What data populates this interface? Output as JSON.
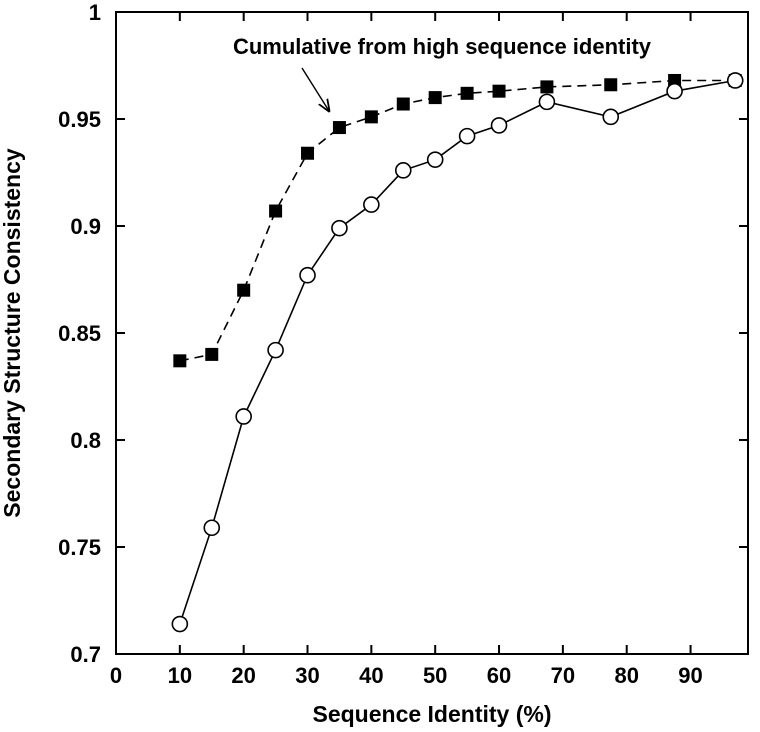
{
  "chart_data": {
    "type": "line",
    "title": "",
    "xlabel": "Sequence Identity (%)",
    "ylabel": "Secondary Structure Consistency",
    "xlim": [
      0,
      99
    ],
    "ylim": [
      0.7,
      1.0
    ],
    "x_ticks": [
      0,
      10,
      20,
      30,
      40,
      50,
      60,
      70,
      80,
      90
    ],
    "x_tick_labels": [
      "0",
      "10",
      "20",
      "30",
      "40",
      "50",
      "60",
      "70",
      "80",
      "90"
    ],
    "y_ticks": [
      0.7,
      0.75,
      0.8,
      0.85,
      0.9,
      0.95,
      1.0
    ],
    "y_tick_labels": [
      "0.7",
      "0.75",
      "0.8",
      "0.85",
      "0.9",
      "0.95",
      "1"
    ],
    "grid": false,
    "legend": "none",
    "series": [
      {
        "marker": "filled-square",
        "line_style": "dashed",
        "color": "#000000",
        "x": [
          10,
          15,
          20,
          25,
          30,
          35,
          40,
          45,
          50,
          55,
          60,
          67.5,
          77.5,
          87.5,
          97
        ],
        "values": [
          0.837,
          0.84,
          0.87,
          0.907,
          0.934,
          0.946,
          0.951,
          0.957,
          0.96,
          0.962,
          0.963,
          0.965,
          0.966,
          0.968,
          0.968
        ]
      },
      {
        "marker": "open-circle",
        "line_style": "solid",
        "color": "#000000",
        "x": [
          10,
          15,
          20,
          25,
          30,
          35,
          40,
          45,
          50,
          55,
          60,
          67.5,
          77.5,
          87.5,
          97
        ],
        "values": [
          0.714,
          0.759,
          0.811,
          0.842,
          0.877,
          0.899,
          0.91,
          0.926,
          0.931,
          0.942,
          0.947,
          0.958,
          0.951,
          0.963,
          0.968
        ]
      }
    ],
    "annotations": [
      {
        "text": "Cumulative from high sequence identity",
        "arrow_to": {
          "x": 34,
          "y": 0.95
        }
      }
    ]
  }
}
